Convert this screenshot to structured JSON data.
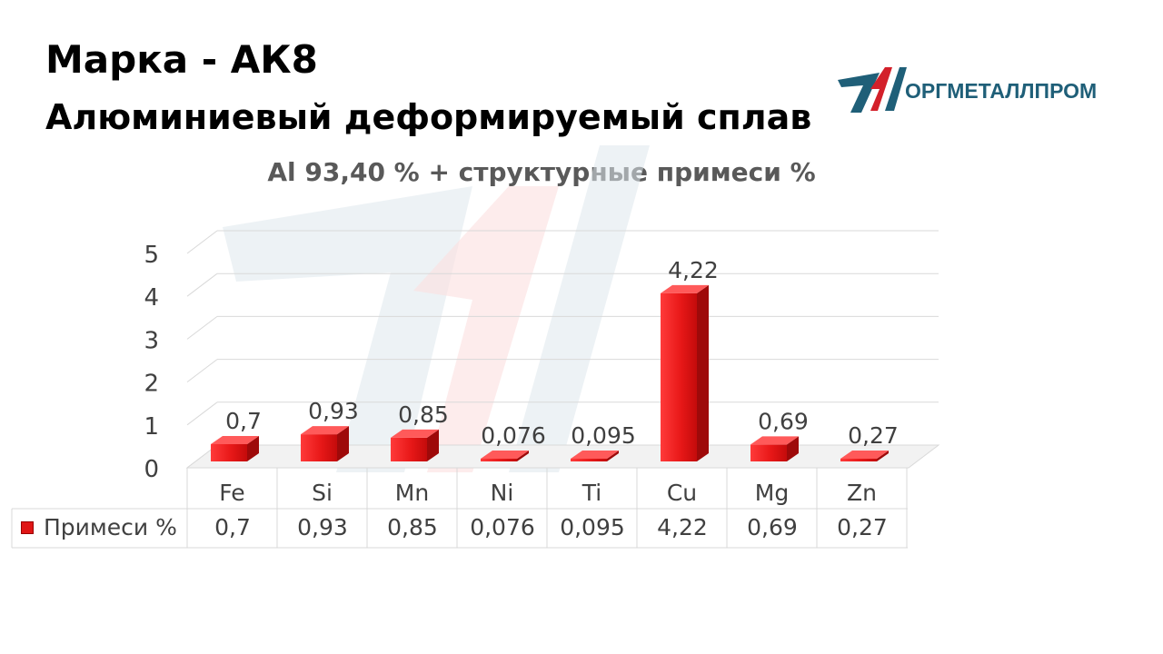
{
  "header": {
    "grade_label": "Марка",
    "separator": "-",
    "grade_value": "АК8",
    "subtitle": "Алюминиевый деформируемый сплав"
  },
  "logo": {
    "text": "ОРГМЕТАЛЛПРОМ",
    "colors": {
      "blue": "#1f5f78",
      "red": "#d3202a"
    }
  },
  "chart_data": {
    "type": "bar",
    "title": "Al 93,40 % + структурные примеси %",
    "categories": [
      "Fe",
      "Si",
      "Mn",
      "Ni",
      "Ti",
      "Cu",
      "Mg",
      "Zn"
    ],
    "series": [
      {
        "name": "Примеси %",
        "values": [
          0.7,
          0.93,
          0.85,
          0.076,
          0.095,
          4.22,
          0.69,
          0.27
        ],
        "labels": [
          "0,7",
          "0,93",
          "0,85",
          "0,076",
          "0,095",
          "4,22",
          "0,69",
          "0,27"
        ],
        "color": "#e01616"
      }
    ],
    "y_ticks": [
      "0",
      "1",
      "2",
      "3",
      "4",
      "5"
    ],
    "ylim": [
      0,
      5
    ],
    "grid": true,
    "three_d": true,
    "data_table": true
  }
}
